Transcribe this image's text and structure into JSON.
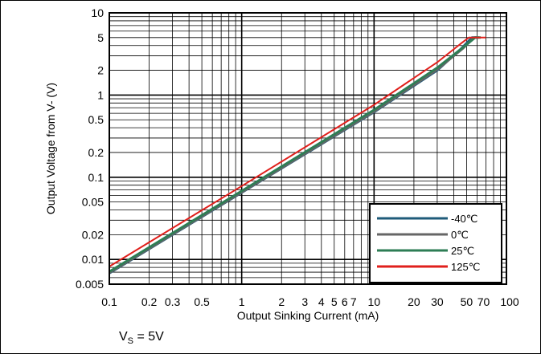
{
  "chart_data": {
    "type": "line",
    "title": "",
    "xlabel": "Output Sinking Current (mA)",
    "ylabel": "Output Voltage from V- (V)",
    "x_scale": "log",
    "y_scale": "log",
    "xlim": [
      0.1,
      100
    ],
    "ylim": [
      0.005,
      10
    ],
    "grid": true,
    "legend_position": "bottom-right",
    "x_ticks": [
      {
        "value": 0.1,
        "label": "0.1"
      },
      {
        "value": 0.2,
        "label": "0.2"
      },
      {
        "value": 0.3,
        "label": "0.3"
      },
      {
        "value": 0.5,
        "label": "0.5"
      },
      {
        "value": 1,
        "label": "1"
      },
      {
        "value": 2,
        "label": "2"
      },
      {
        "value": 3,
        "label": "3"
      },
      {
        "value": 4,
        "label": "4"
      },
      {
        "value": 5,
        "label": "5"
      },
      {
        "value": 6,
        "label": "6"
      },
      {
        "value": 7,
        "label": "7"
      },
      {
        "value": 10,
        "label": "10"
      },
      {
        "value": 20,
        "label": "20"
      },
      {
        "value": 30,
        "label": "30"
      },
      {
        "value": 50,
        "label": "50"
      },
      {
        "value": 70,
        "label": "70"
      },
      {
        "value": 100,
        "label": "100"
      }
    ],
    "y_ticks": [
      {
        "value": 0.005,
        "label": "0.005"
      },
      {
        "value": 0.01,
        "label": "0.01"
      },
      {
        "value": 0.02,
        "label": "0.02"
      },
      {
        "value": 0.05,
        "label": "0.05"
      },
      {
        "value": 0.1,
        "label": "0.1"
      },
      {
        "value": 0.2,
        "label": "0.2"
      },
      {
        "value": 0.5,
        "label": "0.5"
      },
      {
        "value": 1,
        "label": "1"
      },
      {
        "value": 2,
        "label": "2"
      },
      {
        "value": 5,
        "label": "5"
      },
      {
        "value": 10,
        "label": "10"
      }
    ],
    "series": [
      {
        "name": "-40℃",
        "color": "#1f5b7a",
        "points": [
          [
            0.1,
            0.0068
          ],
          [
            1,
            0.065
          ],
          [
            10,
            0.62
          ],
          [
            30,
            2.0
          ],
          [
            45,
            3.6
          ],
          [
            55,
            5.0
          ],
          [
            60,
            5.0
          ]
        ]
      },
      {
        "name": "0℃",
        "color": "#666666",
        "points": [
          [
            0.1,
            0.0069
          ],
          [
            1,
            0.066
          ],
          [
            10,
            0.63
          ],
          [
            30,
            2.05
          ],
          [
            47,
            3.7
          ],
          [
            57,
            5.0
          ],
          [
            62,
            5.0
          ]
        ]
      },
      {
        "name": "25℃",
        "color": "#2e7d55",
        "points": [
          [
            0.1,
            0.0071
          ],
          [
            1,
            0.068
          ],
          [
            10,
            0.66
          ],
          [
            30,
            2.15
          ],
          [
            48,
            3.9
          ],
          [
            58,
            5.0
          ],
          [
            64,
            5.0
          ]
        ]
      },
      {
        "name": "125℃",
        "color": "#e0201c",
        "points": [
          [
            0.1,
            0.0082
          ],
          [
            1,
            0.078
          ],
          [
            10,
            0.76
          ],
          [
            30,
            2.5
          ],
          [
            45,
            4.2
          ],
          [
            52,
            5.0
          ],
          [
            70,
            5.0
          ]
        ]
      }
    ]
  },
  "condition": {
    "symbol": "V",
    "subscript": "S",
    "text": " = 5V"
  }
}
